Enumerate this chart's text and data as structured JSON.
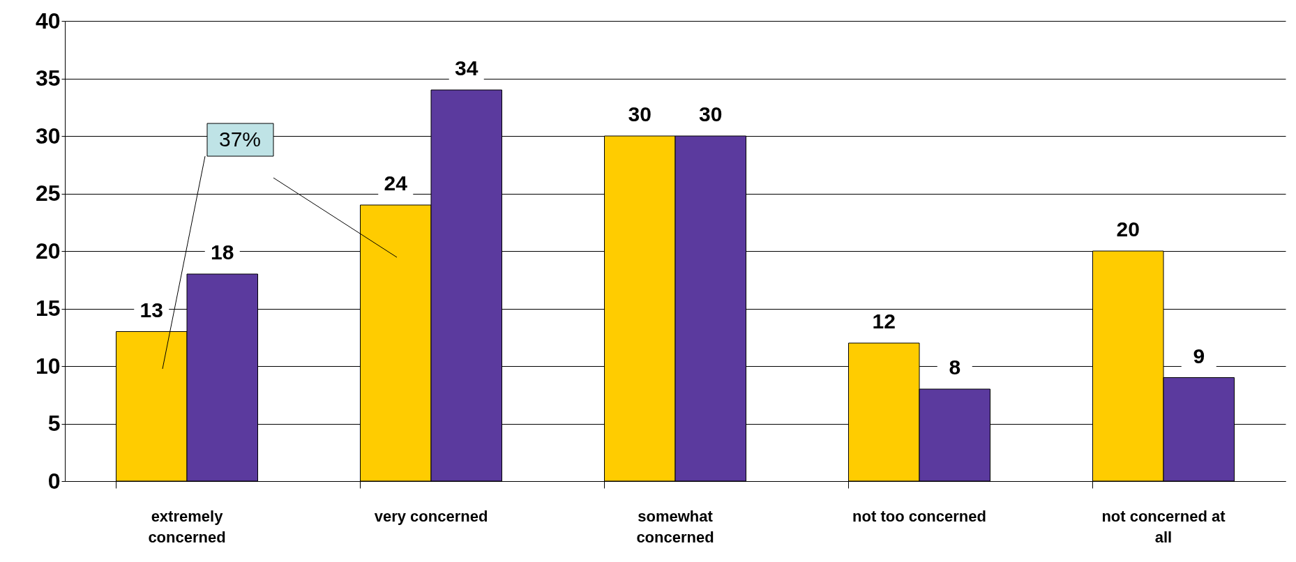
{
  "chart_data": {
    "type": "bar",
    "categories": [
      "extremely concerned",
      "very concerned",
      "somewhat concerned",
      "not too concerned",
      "not concerned at all"
    ],
    "series": [
      {
        "color": "#ffcc00",
        "values": [
          13,
          24,
          30,
          12,
          20
        ]
      },
      {
        "color": "#5b3a9e",
        "values": [
          18,
          34,
          30,
          8,
          9
        ]
      }
    ],
    "ylim": [
      0,
      40
    ],
    "yticks": [
      0,
      5,
      10,
      15,
      20,
      25,
      30,
      35,
      40
    ],
    "grid": "y",
    "data_labels": true,
    "annotations": [
      "37%"
    ]
  }
}
